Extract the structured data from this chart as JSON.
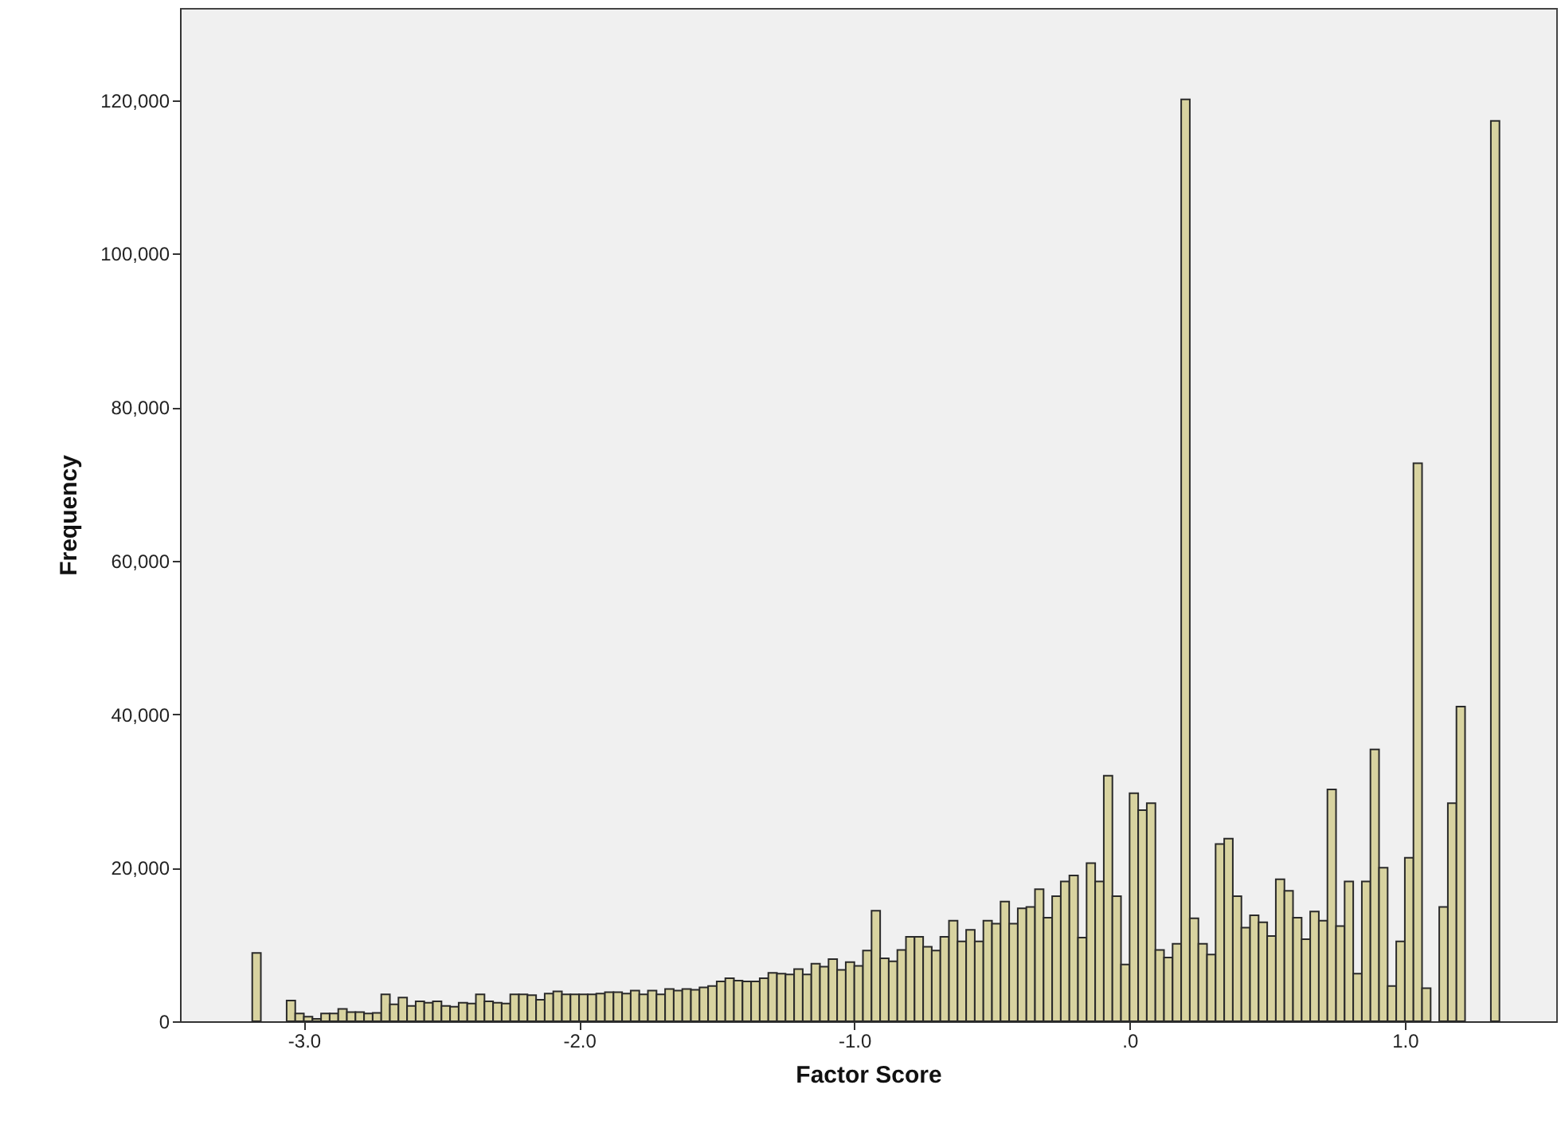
{
  "chart_data": {
    "type": "histogram",
    "xlabel": "Factor Score",
    "ylabel": "Frequency",
    "color": "#d8d3a0",
    "bins": [
      -3.1875,
      -3.15625,
      -3.125,
      -3.09375,
      -3.0625,
      -3.03125,
      -3,
      -2.96875,
      -2.9375,
      -2.90625,
      -2.875,
      -2.84375,
      -2.8125,
      -2.78125,
      -2.75,
      -2.71875,
      -2.6875,
      -2.65625,
      -2.625,
      -2.59375,
      -2.5625,
      -2.53125,
      -2.5,
      -2.46875,
      -2.4375,
      -2.40625,
      -2.375,
      -2.34375,
      -2.3125,
      -2.28125,
      -2.25,
      -2.21875,
      -2.1875,
      -2.15625,
      -2.125,
      -2.09375,
      -2.0625,
      -2.03125,
      -2,
      -1.96875,
      -1.9375,
      -1.90625,
      -1.875,
      -1.84375,
      -1.8125,
      -1.78125,
      -1.75,
      -1.71875,
      -1.6875,
      -1.65625,
      -1.625,
      -1.59375,
      -1.5625,
      -1.53125,
      -1.5,
      -1.46875,
      -1.4375,
      -1.40625,
      -1.375,
      -1.34375,
      -1.3125,
      -1.28125,
      -1.25,
      -1.21875,
      -1.1875,
      -1.15625,
      -1.125,
      -1.09375,
      -1.0625,
      -1.03125,
      -1,
      -0.96875,
      -0.9375,
      -0.90625,
      -0.875,
      -0.84375,
      -0.8125,
      -0.78125,
      -0.75,
      -0.71875,
      -0.6875,
      -0.65625,
      -0.625,
      -0.59375,
      -0.5625,
      -0.53125,
      -0.5,
      -0.46875,
      -0.4375,
      -0.40625,
      -0.375,
      -0.34375,
      -0.3125,
      -0.28125,
      -0.25,
      -0.21875,
      -0.1875,
      -0.15625,
      -0.125,
      -0.09375,
      -0.0625,
      -0.03125,
      0,
      0.03125,
      0.0625,
      0.09375,
      0.125,
      0.15625,
      0.1875,
      0.21875,
      0.25,
      0.28125,
      0.3125,
      0.34375,
      0.375,
      0.40625,
      0.4375,
      0.46875,
      0.5,
      0.53125,
      0.5625,
      0.59375,
      0.625,
      0.65625,
      0.6875,
      0.71875,
      0.75,
      0.78125,
      0.8125,
      0.84375,
      0.875,
      0.90625,
      0.9375,
      0.96875,
      1,
      1.03125,
      1.0625,
      1.09375,
      1.125,
      1.15625,
      1.1875,
      1.21875,
      1.25,
      1.28125,
      1.3125,
      1.34375
    ],
    "values": [
      8900,
      0,
      0,
      0,
      2700,
      1000,
      600,
      300,
      1000,
      1000,
      1600,
      1200,
      1200,
      1000,
      1100,
      3500,
      2200,
      3100,
      2000,
      2600,
      2400,
      2600,
      2000,
      1900,
      2400,
      2300,
      3500,
      2600,
      2400,
      2300,
      3500,
      3500,
      3400,
      2800,
      3600,
      3900,
      3500,
      3500,
      3500,
      3500,
      3600,
      3800,
      3800,
      3600,
      4000,
      3500,
      4000,
      3500,
      4200,
      4000,
      4200,
      4100,
      4400,
      4600,
      5200,
      5600,
      5300,
      5200,
      5200,
      5600,
      6300,
      6200,
      6100,
      6800,
      6100,
      7500,
      7100,
      8100,
      6700,
      7700,
      7200,
      9200,
      14400,
      8200,
      7800,
      9300,
      11000,
      11000,
      9700,
      9200,
      11000,
      13100,
      10400,
      11900,
      10400,
      13100,
      12700,
      15600,
      12700,
      14700,
      14900,
      17200,
      13500,
      16300,
      18200,
      19000,
      10900,
      20600,
      18200,
      32000,
      16300,
      7400,
      29700,
      27500,
      28400,
      9300,
      8300,
      10100,
      120100,
      13400,
      10100,
      8700,
      23100,
      23800,
      16300,
      12200,
      13800,
      12900,
      11100,
      18500,
      17000,
      13500,
      10700,
      14300,
      13100,
      30200,
      12400,
      18200,
      6200,
      18200,
      35400,
      20000,
      4600,
      10400,
      21300,
      72700,
      4300,
      0,
      14900,
      28400,
      41000,
      0,
      0,
      0,
      117300
    ],
    "xlim": [
      -3.45,
      1.55
    ],
    "ylim": [
      0,
      132000
    ],
    "xticks": [
      {
        "value": -3,
        "label": "-3.0"
      },
      {
        "value": -2,
        "label": "-2.0"
      },
      {
        "value": -1,
        "label": "-1.0"
      },
      {
        "value": 0,
        "label": ".0"
      },
      {
        "value": 1,
        "label": "1.0"
      }
    ],
    "yticks": [
      0,
      {
        "value": 20000,
        "label": "20,000"
      },
      {
        "value": 40000,
        "label": "40,000"
      },
      {
        "value": 60000,
        "label": "60,000"
      },
      {
        "value": 80000,
        "label": "80,000"
      },
      {
        "value": 100000,
        "label": "100,000"
      },
      {
        "value": 120000,
        "label": "120,000"
      }
    ]
  }
}
